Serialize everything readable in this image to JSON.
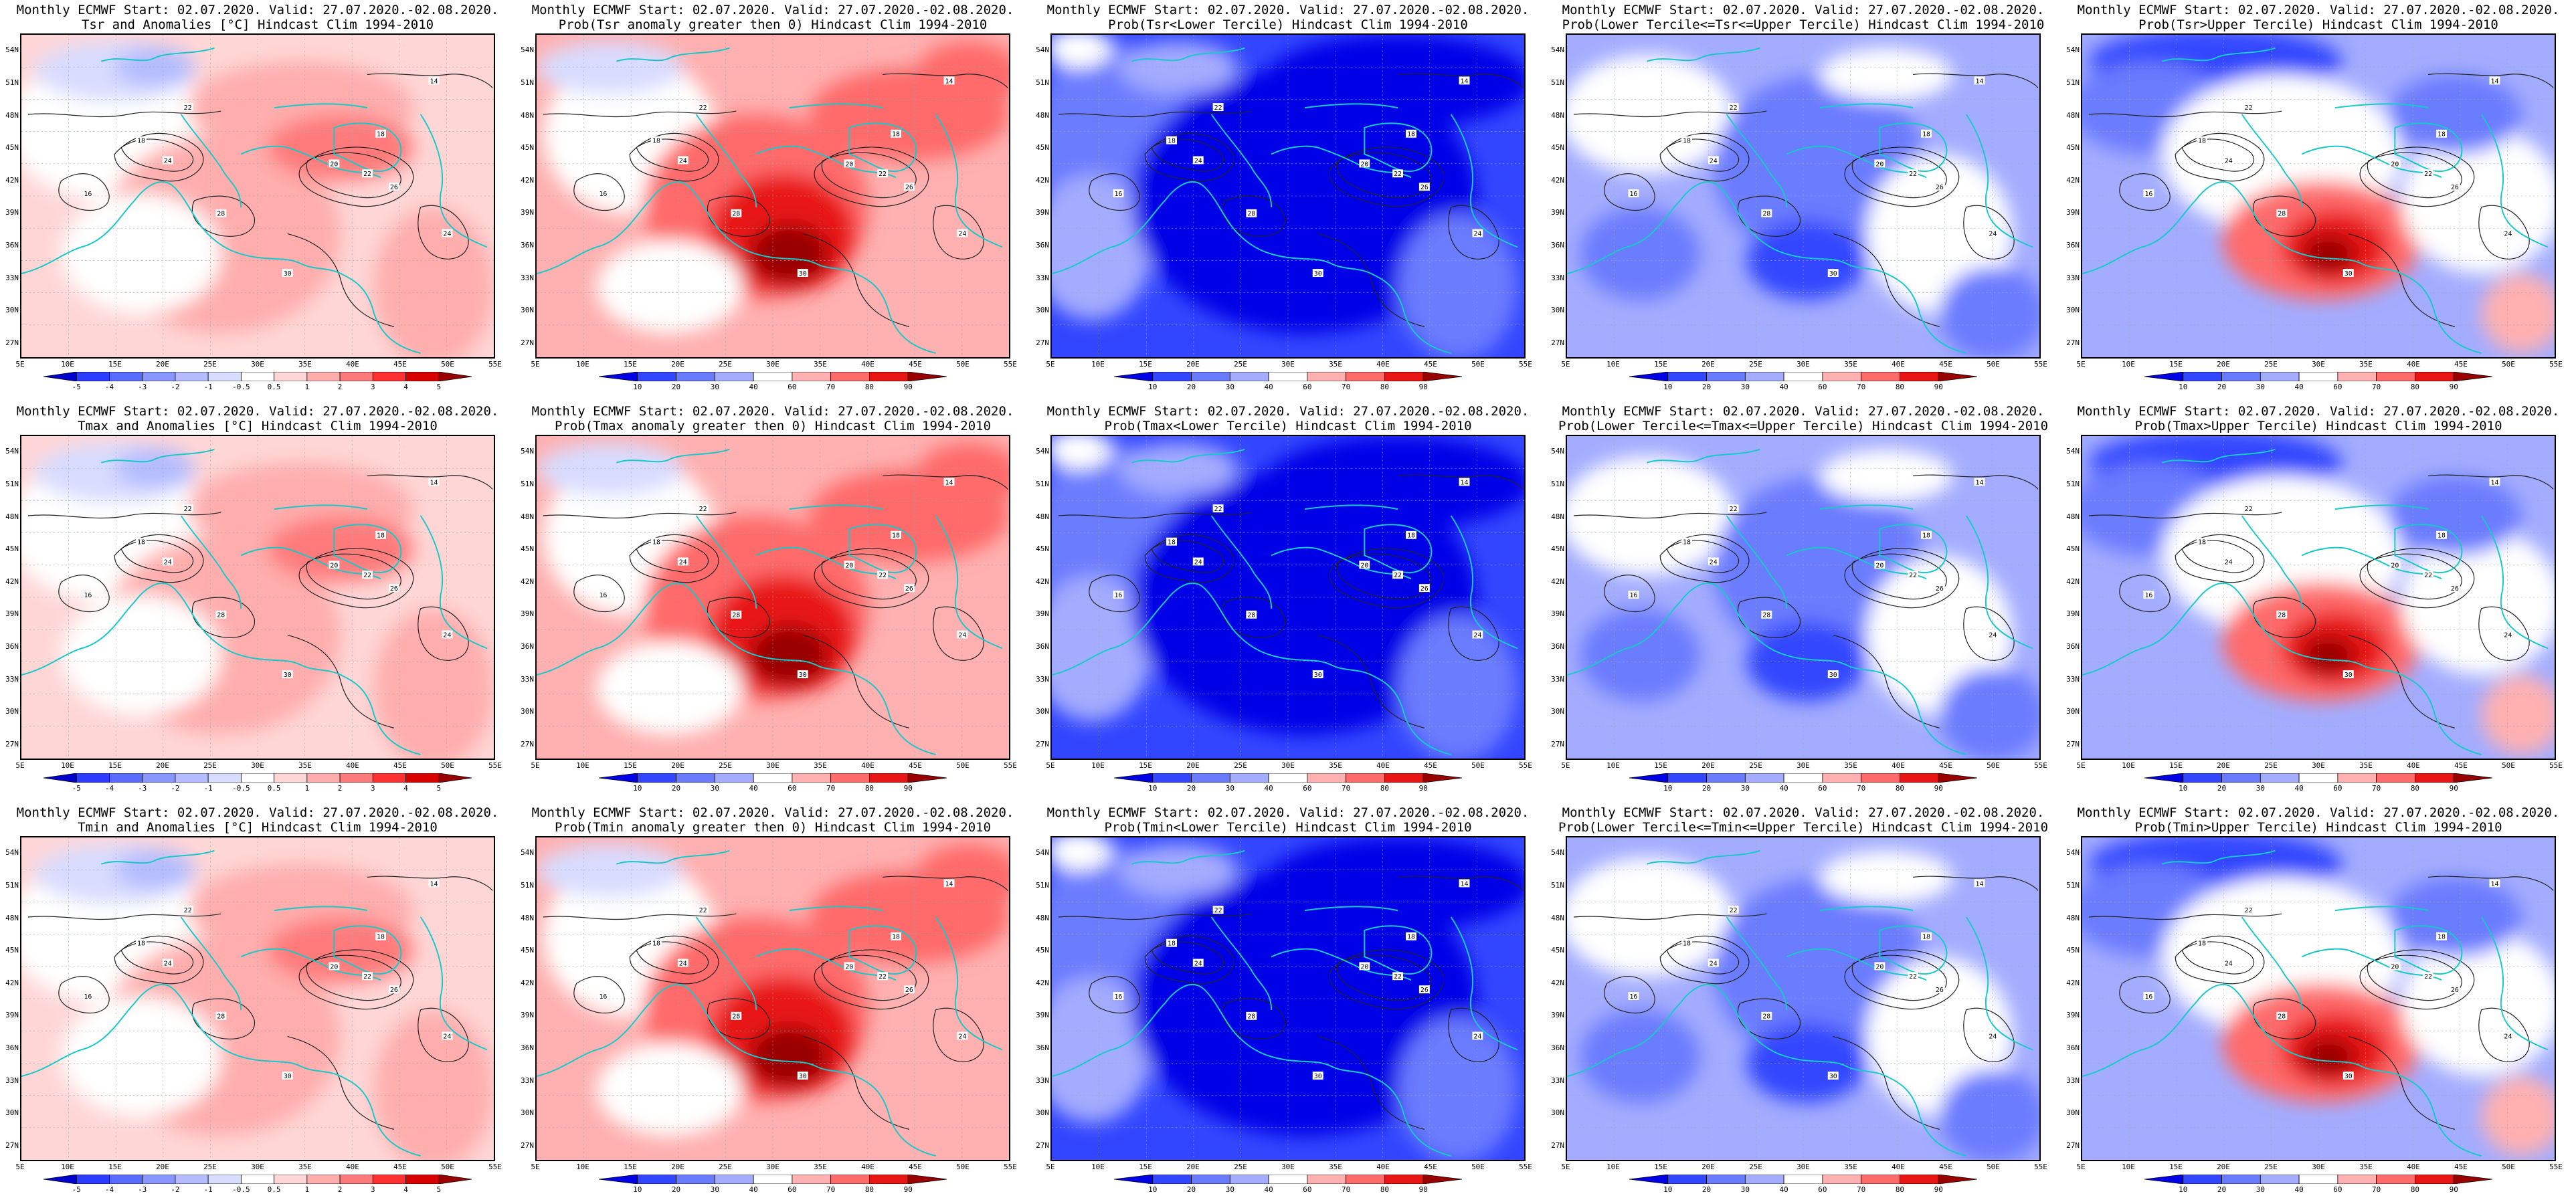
{
  "panels": [
    {
      "line1": "Monthly ECMWF Start: 02.07.2020. Valid: 27.07.2020.-02.08.2020.",
      "line2": "Tsr and Anomalies [°C] Hindcast Clim 1994-2010",
      "scale": "anomaly",
      "theme": "anom"
    },
    {
      "line1": "Monthly ECMWF Start: 02.07.2020. Valid: 27.07.2020.-02.08.2020.",
      "line2": "Prob(Tsr anomaly greater then 0) Hindcast Clim 1994-2010",
      "scale": "probability",
      "theme": "warm"
    },
    {
      "line1": "Monthly ECMWF Start: 02.07.2020. Valid: 27.07.2020.-02.08.2020.",
      "line2": "Prob(Tsr<Lower Tercile) Hindcast Clim 1994-2010",
      "scale": "probability",
      "theme": "cold"
    },
    {
      "line1": "Monthly ECMWF Start: 02.07.2020. Valid: 27.07.2020.-02.08.2020.",
      "line2": "Prob(Lower Tercile<=Tsr<=Upper Tercile) Hindcast Clim 1994-2010",
      "scale": "probability",
      "theme": "mid"
    },
    {
      "line1": "Monthly ECMWF Start: 02.07.2020. Valid: 27.07.2020.-02.08.2020.",
      "line2": "Prob(Tsr>Upper Tercile) Hindcast Clim 1994-2010",
      "scale": "probability",
      "theme": "upper"
    },
    {
      "line1": "Monthly ECMWF Start: 02.07.2020. Valid: 27.07.2020.-02.08.2020.",
      "line2": "Tmax and Anomalies [°C] Hindcast Clim 1994-2010",
      "scale": "anomaly",
      "theme": "anom"
    },
    {
      "line1": "Monthly ECMWF Start: 02.07.2020. Valid: 27.07.2020.-02.08.2020.",
      "line2": "Prob(Tmax anomaly greater then 0) Hindcast Clim 1994-2010",
      "scale": "probability",
      "theme": "warm"
    },
    {
      "line1": "Monthly ECMWF Start: 02.07.2020. Valid: 27.07.2020.-02.08.2020.",
      "line2": "Prob(Tmax<Lower Tercile) Hindcast Clim 1994-2010",
      "scale": "probability",
      "theme": "cold"
    },
    {
      "line1": "Monthly ECMWF Start: 02.07.2020. Valid: 27.07.2020.-02.08.2020.",
      "line2": "Prob(Lower Tercile<=Tmax<=Upper Tercile) Hindcast Clim 1994-2010",
      "scale": "probability",
      "theme": "mid"
    },
    {
      "line1": "Monthly ECMWF Start: 02.07.2020. Valid: 27.07.2020.-02.08.2020.",
      "line2": "Prob(Tmax>Upper Tercile) Hindcast Clim 1994-2010",
      "scale": "probability",
      "theme": "upper"
    },
    {
      "line1": "Monthly ECMWF Start: 02.07.2020. Valid: 27.07.2020.-02.08.2020.",
      "line2": "Tmin and Anomalies [°C] Hindcast Clim 1994-2010",
      "scale": "anomaly",
      "theme": "anom"
    },
    {
      "line1": "Monthly ECMWF Start: 02.07.2020. Valid: 27.07.2020.-02.08.2020.",
      "line2": "Prob(Tmin anomaly greater then 0) Hindcast Clim 1994-2010",
      "scale": "probability",
      "theme": "warm"
    },
    {
      "line1": "Monthly ECMWF Start: 02.07.2020. Valid: 27.07.2020.-02.08.2020.",
      "line2": "Prob(Tmin<Lower Tercile) Hindcast Clim 1994-2010",
      "scale": "probability",
      "theme": "cold"
    },
    {
      "line1": "Monthly ECMWF Start: 02.07.2020. Valid: 27.07.2020.-02.08.2020.",
      "line2": "Prob(Lower Tercile<=Tmin<=Upper Tercile) Hindcast Clim 1994-2010",
      "scale": "probability",
      "theme": "mid"
    },
    {
      "line1": "Monthly ECMWF Start: 02.07.2020. Valid: 27.07.2020.-02.08.2020.",
      "line2": "Prob(Tmin>Upper Tercile) Hindcast Clim 1994-2010",
      "scale": "probability",
      "theme": "upper"
    }
  ],
  "lat_labels": [
    "54N",
    "51N",
    "48N",
    "45N",
    "42N",
    "39N",
    "36N",
    "33N",
    "30N",
    "27N"
  ],
  "lat_range": [
    25.5,
    55.5
  ],
  "lon_labels": [
    "5E",
    "10E",
    "15E",
    "20E",
    "25E",
    "30E",
    "35E",
    "40E",
    "45E",
    "50E",
    "55E"
  ],
  "lon_range": [
    5,
    55
  ],
  "scales": {
    "anomaly": {
      "labels": [
        "-5",
        "-4",
        "-3",
        "-2",
        "-1",
        "-0.5",
        "0.5",
        "1",
        "2",
        "3",
        "4",
        "5"
      ],
      "colors": [
        "#0000cc",
        "#2b3bff",
        "#5a6bff",
        "#8996ff",
        "#b4bcff",
        "#d8dcff",
        "#ffffff",
        "#ffd6d6",
        "#ffadad",
        "#ff7a7a",
        "#ff3030",
        "#d90000",
        "#990000"
      ]
    },
    "probability": {
      "labels": [
        "10",
        "20",
        "30",
        "40",
        "60",
        "70",
        "80",
        "90"
      ],
      "colors": [
        "#0000e6",
        "#3346ff",
        "#6b7bff",
        "#a3acff",
        "#ffffff",
        "#ffb0b0",
        "#ff6a6a",
        "#e81515",
        "#990000"
      ]
    }
  },
  "map_colors": {
    "coast": "#19c9c9",
    "contour": "#222222",
    "label_bg": "#ffffff"
  }
}
